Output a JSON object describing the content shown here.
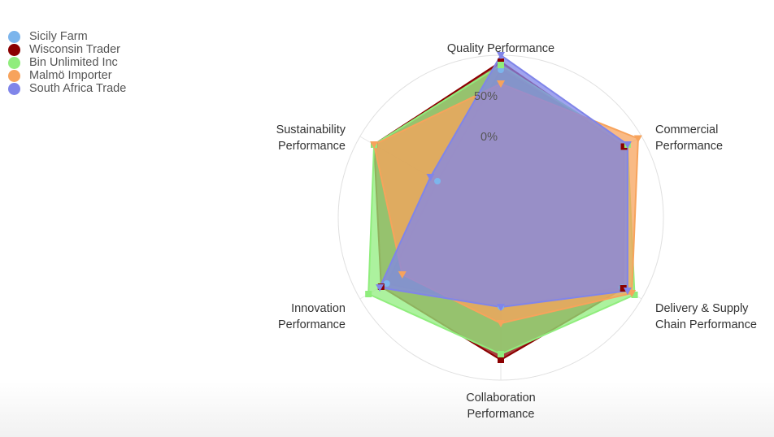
{
  "chart_data": {
    "type": "radar",
    "categories": [
      [
        "Quality Performance"
      ],
      [
        "Commercial",
        "Performance"
      ],
      [
        "Delivery & Supply",
        "Chain Performance"
      ],
      [
        "Collaboration",
        "Performance"
      ],
      [
        "Innovation",
        "Performance"
      ],
      [
        "Sustainability",
        "Performance"
      ]
    ],
    "radial_ticks": [
      "0%",
      "50%"
    ],
    "rlim": [
      -100,
      100
    ],
    "series": [
      {
        "name": "Sicily Farm",
        "color": "#7cb5ec",
        "marker": "circle",
        "values": [
          82,
          80,
          72,
          10,
          62,
          -10
        ]
      },
      {
        "name": "Wisconsin Trader",
        "color": "#8b0000",
        "marker": "square",
        "values": [
          92,
          75,
          74,
          75,
          70,
          80
        ]
      },
      {
        "name": "Bin Unlimited Inc",
        "color": "#90ed7d",
        "marker": "square",
        "values": [
          88,
          80,
          90,
          68,
          88,
          80
        ]
      },
      {
        "name": "Malmö Importer",
        "color": "#f7a35c",
        "marker": "triangle-down",
        "values": [
          65,
          95,
          86,
          30,
          40,
          80
        ]
      },
      {
        "name": "South Africa Trade",
        "color": "#8085e9",
        "marker": "triangle-down",
        "values": [
          100,
          80,
          80,
          10,
          72,
          0
        ]
      }
    ]
  }
}
